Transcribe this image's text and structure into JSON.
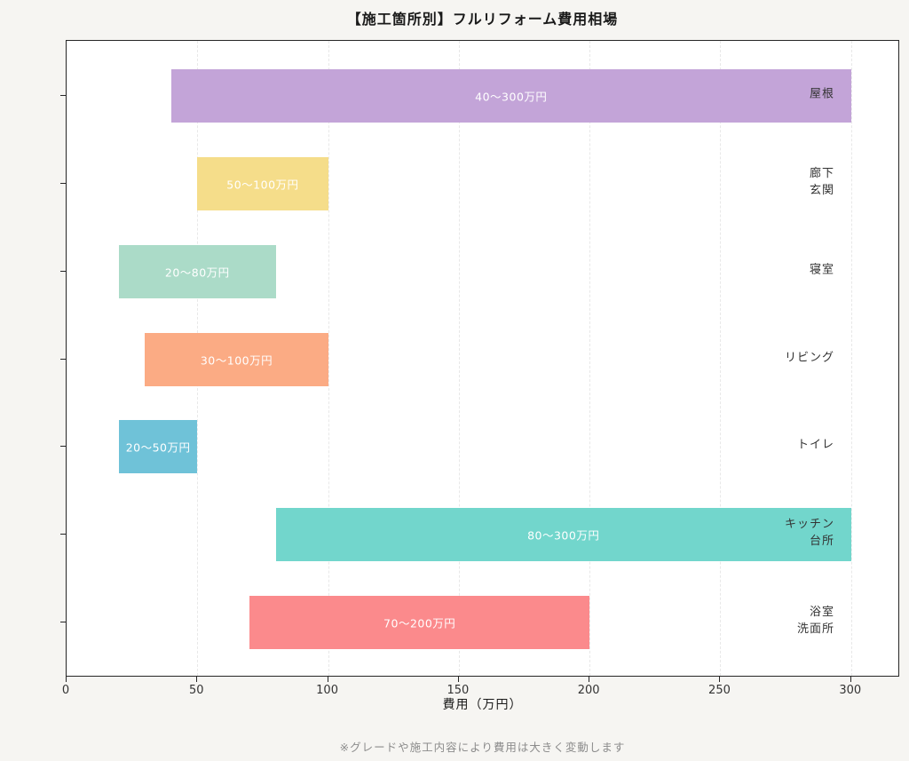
{
  "page": {
    "background_color": "#f6f5f2",
    "plot_background_color": "#ffffff",
    "title": "【施工箇所別】フルリフォーム費用相場",
    "footnote": "※グレードや施工内容により費用は大きく変動します"
  },
  "chart_data": {
    "type": "bar",
    "orientation": "horizontal-range",
    "title": "【施工箇所別】フルリフォーム費用相場",
    "xlabel": "費用（万円）",
    "ylabel": "",
    "xlim": [
      0,
      318.75
    ],
    "xticks": [
      0,
      50,
      100,
      150,
      200,
      250,
      300
    ],
    "grid": "vertical-dashed",
    "gridline_color": "#e8e8e8",
    "legend": false,
    "note": "※グレードや施工内容により費用は大きく変動します",
    "bars": [
      {
        "category": "屋根",
        "category_lines": [
          "屋根"
        ],
        "min": 40,
        "max": 300,
        "label": "40〜300万円",
        "color": "#c3a4d8"
      },
      {
        "category": "廊下 玄関",
        "category_lines": [
          "廊下",
          "玄関"
        ],
        "min": 50,
        "max": 100,
        "label": "50〜100万円",
        "color": "#f5dd8a"
      },
      {
        "category": "寝室",
        "category_lines": [
          "寝室"
        ],
        "min": 20,
        "max": 80,
        "label": "20〜80万円",
        "color": "#abdbc8"
      },
      {
        "category": "リビング",
        "category_lines": [
          "リビング"
        ],
        "min": 30,
        "max": 100,
        "label": "30〜100万円",
        "color": "#fbab84"
      },
      {
        "category": "トイレ",
        "category_lines": [
          "トイレ"
        ],
        "min": 20,
        "max": 50,
        "label": "20〜50万円",
        "color": "#6fc2d8"
      },
      {
        "category": "キッチン 台所",
        "category_lines": [
          "キッチン",
          "台所"
        ],
        "min": 80,
        "max": 300,
        "label": "80〜300万円",
        "color": "#72d6cc"
      },
      {
        "category": "浴室 洗面所",
        "category_lines": [
          "浴室",
          "洗面所"
        ],
        "min": 70,
        "max": 200,
        "label": "70〜200万円",
        "color": "#fb8a8c"
      }
    ]
  }
}
